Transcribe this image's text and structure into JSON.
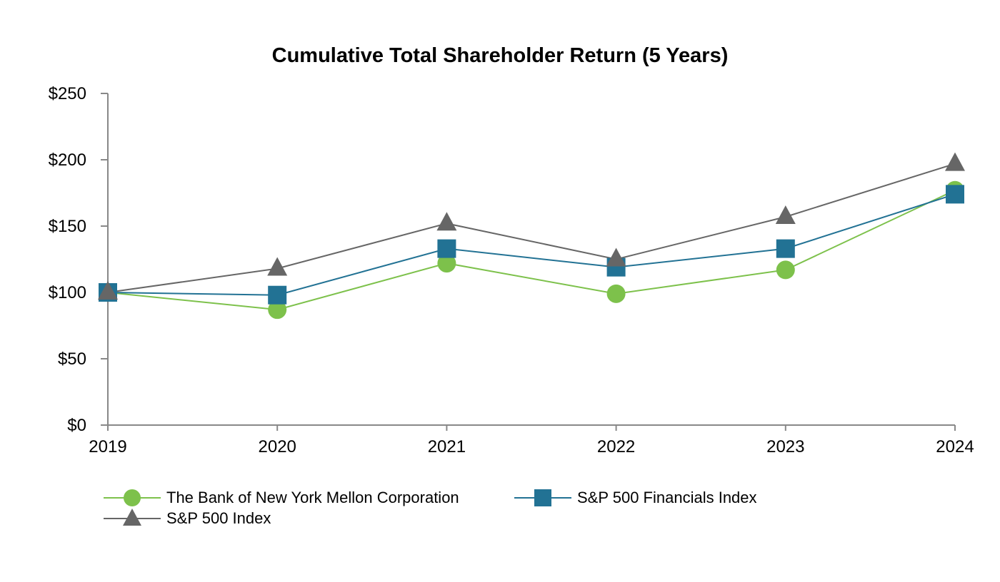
{
  "chart_data": {
    "type": "line",
    "title": "Cumulative Total Shareholder Return (5 Years)",
    "xlabel": "",
    "ylabel": "",
    "categories": [
      "2019",
      "2020",
      "2021",
      "2022",
      "2023",
      "2024"
    ],
    "ylim": [
      0,
      250
    ],
    "y_ticks": [
      0,
      50,
      100,
      150,
      200,
      250
    ],
    "y_tick_labels": [
      "$0",
      "$50",
      "$100",
      "$150",
      "$200",
      "$250"
    ],
    "grid": false,
    "legend_position": "bottom-left",
    "series": [
      {
        "name": "The Bank of New York Mellon Corporation",
        "marker": "circle",
        "color": "#7dc14b",
        "values": [
          100,
          87,
          122,
          99,
          117,
          177
        ]
      },
      {
        "name": "S&P 500 Financials Index",
        "marker": "square",
        "color": "#227294",
        "values": [
          100,
          98,
          133,
          119,
          133,
          174
        ]
      },
      {
        "name": "S&P 500 Index",
        "marker": "triangle",
        "color": "#666666",
        "values": [
          100,
          118,
          152,
          125,
          157,
          197
        ]
      }
    ]
  }
}
